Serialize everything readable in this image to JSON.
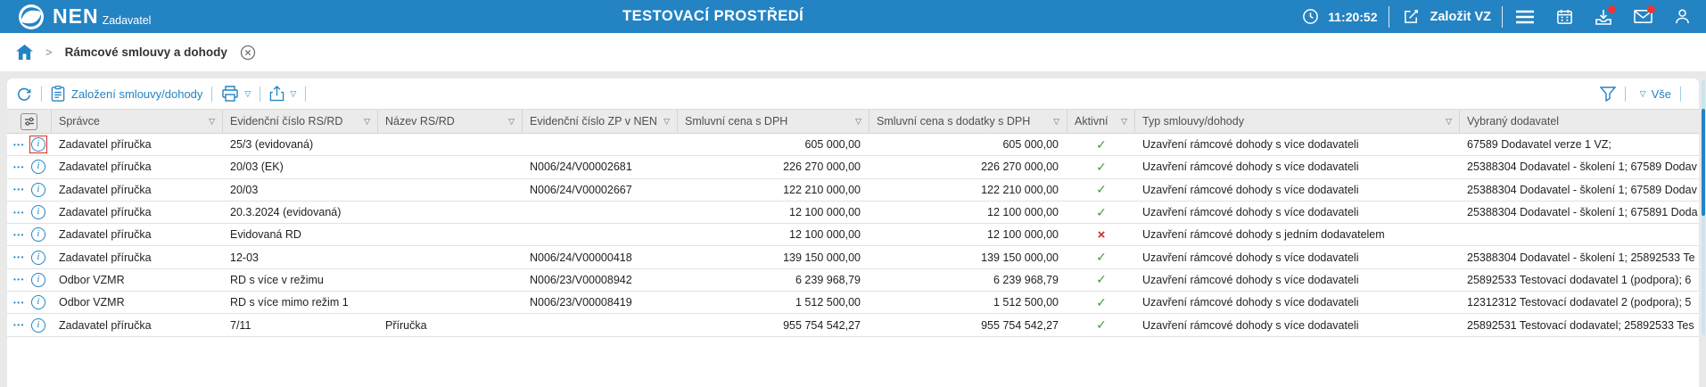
{
  "topbar": {
    "brand": "NEN",
    "brand_sub": "Zadavatel",
    "env_title": "TESTOVACÍ PROSTŘEDÍ",
    "time": "11:20:52",
    "create_vz": "Založit VZ"
  },
  "breadcrumb": {
    "separator": ">",
    "title": "Rámcové smlouvy a dohody"
  },
  "toolbar": {
    "new_link": "Založení smlouvy/dohody",
    "filter_all": "Vše",
    "dropdown_glyph": "▽"
  },
  "table": {
    "columns": [
      {
        "key": "spravce",
        "label": "Správce"
      },
      {
        "key": "cislo_rsrd",
        "label": "Evidenční číslo RS/RD"
      },
      {
        "key": "nazev",
        "label": "Název RS/RD"
      },
      {
        "key": "zp_nen",
        "label": "Evidenční číslo ZP v NEN"
      },
      {
        "key": "cena",
        "label": "Smluvní cena s DPH",
        "align": "right"
      },
      {
        "key": "cena_dodatky",
        "label": "Smluvní cena s dodatky s DPH",
        "align": "right"
      },
      {
        "key": "aktivni",
        "label": "Aktivní",
        "align": "center",
        "type": "bool"
      },
      {
        "key": "typ",
        "label": "Typ smlouvy/dohody"
      },
      {
        "key": "dodavatel",
        "label": "Vybraný dodavatel",
        "nofilter": true
      }
    ],
    "rows": [
      {
        "spravce": "Zadavatel příručka",
        "cislo_rsrd": "25/3 (evidovaná)",
        "nazev": "",
        "zp_nen": "",
        "cena": "605 000,00",
        "cena_dodatky": "605 000,00",
        "aktivni": true,
        "typ": "Uzavření rámcové dohody s více dodavateli",
        "dodavatel": "67589 Dodavatel verze 1 VZ;"
      },
      {
        "spravce": "Zadavatel příručka",
        "cislo_rsrd": "20/03 (EK)",
        "nazev": "",
        "zp_nen": "N006/24/V00002681",
        "cena": "226 270 000,00",
        "cena_dodatky": "226 270 000,00",
        "aktivni": true,
        "typ": "Uzavření rámcové dohody s více dodavateli",
        "dodavatel": "25388304 Dodavatel - školení 1; 67589 Dodav"
      },
      {
        "spravce": "Zadavatel příručka",
        "cislo_rsrd": "20/03",
        "nazev": "",
        "zp_nen": "N006/24/V00002667",
        "cena": "122 210 000,00",
        "cena_dodatky": "122 210 000,00",
        "aktivni": true,
        "typ": "Uzavření rámcové dohody s více dodavateli",
        "dodavatel": "25388304 Dodavatel - školení 1; 67589 Dodav"
      },
      {
        "spravce": "Zadavatel příručka",
        "cislo_rsrd": "20.3.2024 (evidovaná)",
        "nazev": "",
        "zp_nen": "",
        "cena": "12 100 000,00",
        "cena_dodatky": "12 100 000,00",
        "aktivni": true,
        "typ": "Uzavření rámcové dohody s více dodavateli",
        "dodavatel": "25388304 Dodavatel - školení 1; 675891 Doda"
      },
      {
        "spravce": "Zadavatel příručka",
        "cislo_rsrd": "Evidovaná RD",
        "nazev": "",
        "zp_nen": "",
        "cena": "12 100 000,00",
        "cena_dodatky": "12 100 000,00",
        "aktivni": false,
        "typ": "Uzavření rámcové dohody s jedním dodavatelem",
        "dodavatel": ""
      },
      {
        "spravce": "Zadavatel příručka",
        "cislo_rsrd": "12-03",
        "nazev": "",
        "zp_nen": "N006/24/V00000418",
        "cena": "139 150 000,00",
        "cena_dodatky": "139 150 000,00",
        "aktivni": true,
        "typ": "Uzavření rámcové dohody s více dodavateli",
        "dodavatel": "25388304 Dodavatel - školení 1; 25892533 Te"
      },
      {
        "spravce": "Odbor VZMR",
        "cislo_rsrd": "RD s více v režimu",
        "nazev": "",
        "zp_nen": "N006/23/V00008942",
        "cena": "6 239 968,79",
        "cena_dodatky": "6 239 968,79",
        "aktivni": true,
        "typ": "Uzavření rámcové dohody s více dodavateli",
        "dodavatel": "25892533 Testovací dodavatel 1 (podpora); 6"
      },
      {
        "spravce": "Odbor VZMR",
        "cislo_rsrd": "RD s více mimo režim 1",
        "nazev": "",
        "zp_nen": "N006/23/V00008419",
        "cena": "1 512 500,00",
        "cena_dodatky": "1 512 500,00",
        "aktivni": true,
        "typ": "Uzavření rámcové dohody s více dodavateli",
        "dodavatel": "12312312 Testovací dodavatel 2 (podpora); 5"
      },
      {
        "spravce": "Zadavatel příručka",
        "cislo_rsrd": "7/11",
        "nazev": "Příručka",
        "zp_nen": "",
        "cena": "955 754 542,27",
        "cena_dodatky": "955 754 542,27",
        "aktivni": true,
        "typ": "Uzavření rámcové dohody s více dodavateli",
        "dodavatel": "25892531 Testovací dodavatel; 25892533 Tes"
      }
    ],
    "active_yes_glyph": "✓",
    "active_no_glyph": "×",
    "row_menu_glyph": "•••",
    "info_glyph": "i",
    "filter_glyph": "▽"
  },
  "colors": {
    "accent_blue": "#2483c2",
    "check_green": "#3c9e3c",
    "cross_red": "#cc2b27",
    "badge_red": "#e53935",
    "focus_red": "#d22f27"
  }
}
